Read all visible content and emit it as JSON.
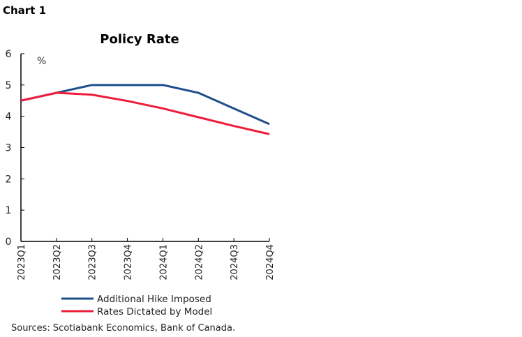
{
  "figure_label": "Chart 1",
  "source": "Sources: Scotiabank Economics, Bank of Canada.",
  "chart_data": {
    "type": "line",
    "title": "Policy Rate",
    "ylabel": "%",
    "xlabel": "",
    "categories": [
      "2023Q1",
      "2023Q2",
      "2023Q3",
      "2023Q4",
      "2024Q1",
      "2024Q2",
      "2024Q3",
      "2024Q4"
    ],
    "ylim": [
      0,
      6
    ],
    "yticks": [
      0,
      1,
      2,
      3,
      4,
      5,
      6
    ],
    "grid": false,
    "legend_position": "bottom",
    "series": [
      {
        "name": "Additional Hike Imposed",
        "color": "#1f4e8c",
        "values": [
          4.5,
          4.75,
          5.0,
          5.0,
          5.0,
          4.75,
          4.25,
          3.75
        ]
      },
      {
        "name": "Rates Dictated by Model",
        "color": "#ee1c3a",
        "values": [
          4.5,
          4.75,
          4.69,
          4.49,
          4.25,
          3.97,
          3.69,
          3.43
        ]
      }
    ]
  }
}
